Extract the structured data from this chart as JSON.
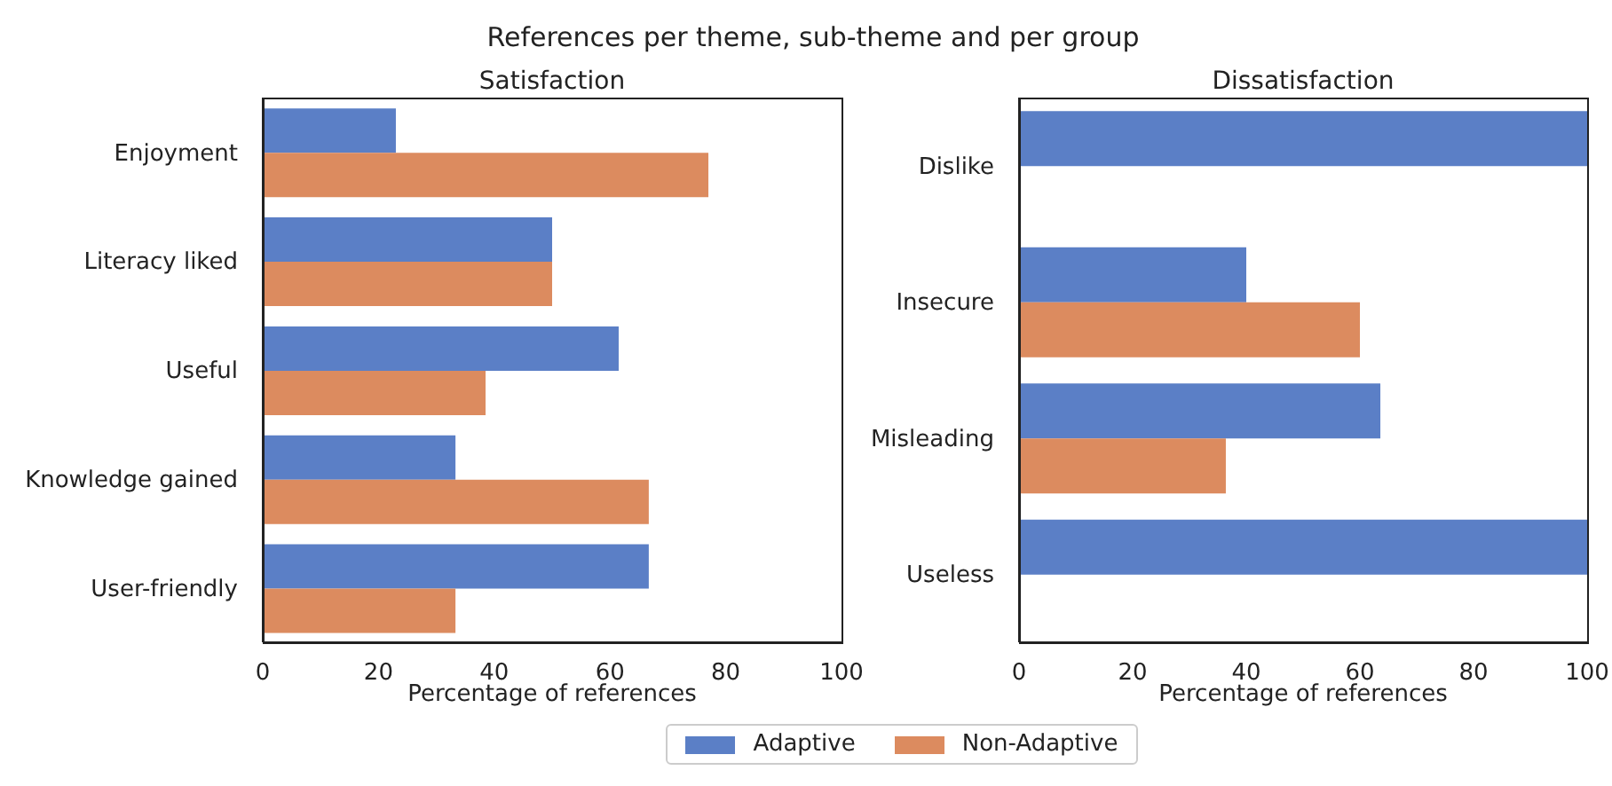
{
  "chart_data": [
    {
      "type": "bar",
      "orientation": "horizontal",
      "title": "Satisfaction",
      "annotations": [
        "References per theme, sub-theme and per group"
      ],
      "xlabel": "Percentage of references",
      "categories": [
        "Enjoyment",
        "Literacy liked",
        "Useful",
        "Knowledge gained",
        "User-friendly"
      ],
      "series": [
        {
          "name": "Adaptive",
          "color": "#5b7fc6",
          "values": [
            23,
            50,
            61.5,
            33.3,
            66.7
          ]
        },
        {
          "name": "Non-Adaptive",
          "color": "#dc8b5f",
          "values": [
            77,
            50,
            38.5,
            66.7,
            33.3
          ]
        }
      ],
      "xlim": [
        0,
        100
      ],
      "xticks": [
        0,
        20,
        40,
        60,
        80,
        100
      ],
      "grid": false,
      "legend": "bottom"
    },
    {
      "type": "bar",
      "orientation": "horizontal",
      "title": "Dissatisfaction",
      "xlabel": "Percentage of references",
      "categories": [
        "Dislike",
        "Insecure",
        "Misleading",
        "Useless"
      ],
      "series": [
        {
          "color": "#5b7fc6",
          "values": [
            100,
            40,
            63.6,
            100
          ]
        },
        {
          "color": "#dc8b5f",
          "values": [
            0,
            60,
            36.4,
            0
          ]
        }
      ],
      "xlim": [
        0,
        100
      ],
      "xticks": [
        0,
        20,
        40,
        60,
        80,
        100
      ],
      "grid": false
    }
  ]
}
